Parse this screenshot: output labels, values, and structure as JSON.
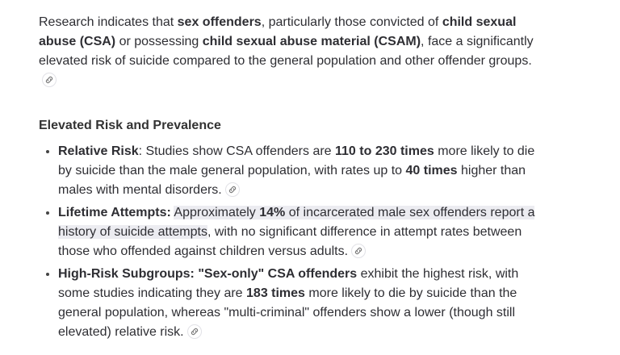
{
  "intro": {
    "runs": [
      {
        "text": "Research indicates that ",
        "bold": false
      },
      {
        "text": "sex offenders",
        "bold": true
      },
      {
        "text": ", particularly those convicted of ",
        "bold": false
      },
      {
        "text": "child sexual abuse (CSA)",
        "bold": true
      },
      {
        "text": " or possessing ",
        "bold": false
      },
      {
        "text": "child sexual abuse material (CSAM)",
        "bold": true
      },
      {
        "text": ", face a significantly elevated risk of suicide compared to the general population and other offender groups.",
        "bold": false
      }
    ]
  },
  "heading": "Elevated Risk and Prevalence",
  "items": [
    {
      "runs": [
        {
          "text": "Relative Risk",
          "bold": true
        },
        {
          "text": ": Studies show CSA offenders are ",
          "bold": false
        },
        {
          "text": "110 to 230 times",
          "bold": true
        },
        {
          "text": " more likely to die by suicide than the male general population, with rates up to ",
          "bold": false
        },
        {
          "text": "40 times",
          "bold": true
        },
        {
          "text": " higher than males with mental disorders.",
          "bold": false
        }
      ]
    },
    {
      "runs": [
        {
          "text": "Lifetime Attempts:",
          "bold": true
        },
        {
          "text": " ",
          "bold": false
        },
        {
          "text": "Approximately ",
          "bold": false,
          "highlight": true
        },
        {
          "text": "14%",
          "bold": true,
          "highlight": true
        },
        {
          "text": " of incarcerated male sex offenders report a history of suicide attempts",
          "bold": false,
          "highlight": true
        },
        {
          "text": ", with no significant difference in attempt rates between those who offended against children versus adults.",
          "bold": false
        }
      ]
    },
    {
      "runs": [
        {
          "text": "High-Risk Subgroups: \"Sex-only\" CSA offenders",
          "bold": true
        },
        {
          "text": " exhibit the highest risk, with some studies indicating they are ",
          "bold": false
        },
        {
          "text": "183 times",
          "bold": true
        },
        {
          "text": " more likely to die by suicide than the general population, whereas \"multi-criminal\" offenders show a lower (though still elevated) relative risk.",
          "bold": false
        }
      ]
    }
  ]
}
